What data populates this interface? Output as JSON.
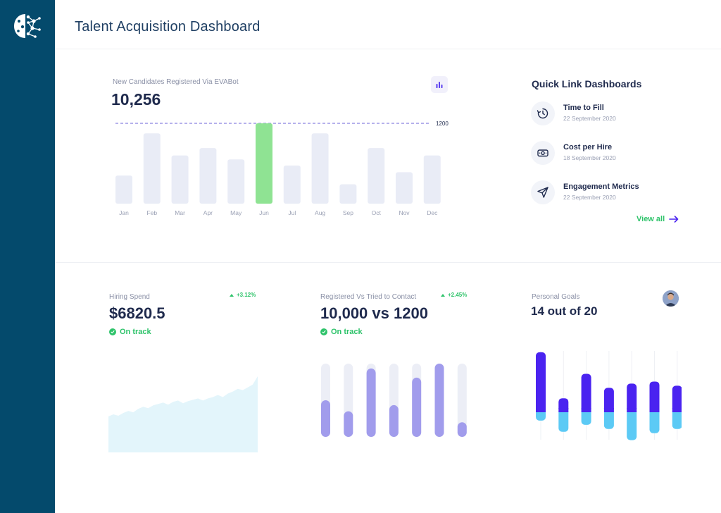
{
  "header": {
    "title": "Talent Acquisition Dashboard"
  },
  "candidates": {
    "label": "New Candidates Registered Via EVABot",
    "value": "10,256",
    "chart_data": {
      "type": "bar",
      "categories": [
        "Jan",
        "Feb",
        "Mar",
        "Apr",
        "May",
        "Jun",
        "Jul",
        "Aug",
        "Sep",
        "Oct",
        "Nov",
        "Dec"
      ],
      "values": [
        420,
        1050,
        720,
        830,
        660,
        1200,
        570,
        1050,
        290,
        830,
        470,
        720
      ],
      "highlight_index": 5,
      "reference_line": 1200,
      "reference_label": "1200",
      "ylim": [
        0,
        1200
      ],
      "colors": {
        "bar": "#e9ecf6",
        "highlight": "#8fe393",
        "reference": "#6c63d9"
      }
    }
  },
  "quick_links": {
    "title": "Quick Link Dashboards",
    "items": [
      {
        "name": "Time to Fill",
        "date": "22 September 2020",
        "icon": "clock-icon"
      },
      {
        "name": "Cost per Hire",
        "date": "18 September 2020",
        "icon": "money-icon"
      },
      {
        "name": "Engagement Metrics",
        "date": "22 September 2020",
        "icon": "paper-plane-icon"
      }
    ],
    "view_all": "View all"
  },
  "hiring_spend": {
    "label": "Hiring Spend",
    "value": "$6820.5",
    "delta": "+3.12%",
    "status": "On track",
    "chart_data": {
      "type": "area",
      "values": [
        52,
        55,
        53,
        57,
        60,
        58,
        63,
        66,
        64,
        68,
        70,
        72,
        69,
        73,
        75,
        71,
        74,
        76,
        78,
        75,
        78,
        80,
        83,
        80,
        85,
        88,
        92,
        90,
        94,
        98,
        110
      ],
      "ylim": [
        0,
        110
      ],
      "colors": {
        "fill": "#e3f5fb"
      }
    }
  },
  "registered_vs_contact": {
    "label": "Registered Vs Tried to Contact",
    "value": "10,000 vs 1200",
    "delta": "+2.45%",
    "status": "On track",
    "chart_data": {
      "type": "bar",
      "values": [
        60,
        42,
        112,
        52,
        97,
        120,
        24
      ],
      "ylim": [
        0,
        120
      ],
      "colors": {
        "track": "#eceef6",
        "bar": "#a19cec"
      }
    }
  },
  "personal_goals": {
    "label": "Personal Goals",
    "value": "14 out of 20",
    "avatar": "avatar",
    "chart_data": {
      "type": "bar",
      "series": [
        {
          "values": [
            86,
            20,
            55,
            35,
            41,
            44,
            38
          ]
        },
        {
          "values": [
            -12,
            -28,
            -18,
            -24,
            -40,
            -30,
            -24
          ]
        }
      ],
      "ylim": [
        -40,
        86
      ],
      "colors": {
        "positive": "#4a23f0",
        "negative": "#5ccaf5"
      }
    }
  },
  "colors": {
    "sidebar": "#044a6c",
    "accent_green": "#2ec36a",
    "text_dark": "#1f2a4d"
  }
}
